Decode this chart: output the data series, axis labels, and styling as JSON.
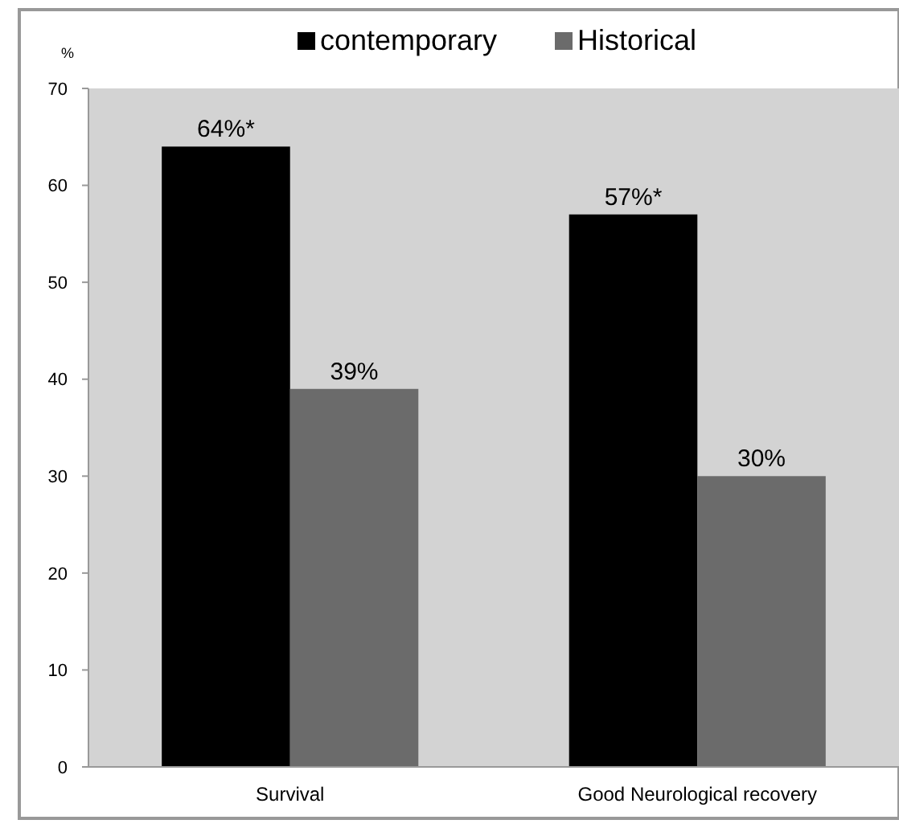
{
  "chart_data": {
    "type": "bar",
    "ylabel": "%",
    "categories": [
      "Survival",
      "Good Neurological recovery"
    ],
    "series": [
      {
        "name": "contemporary",
        "color": "#000000",
        "values": [
          64,
          57
        ],
        "value_labels": [
          "64%*",
          "57%*"
        ]
      },
      {
        "name": "Historical",
        "color": "#6b6b6b",
        "values": [
          39,
          30
        ],
        "value_labels": [
          "39%",
          "30%"
        ]
      }
    ],
    "ylim": [
      0,
      70
    ],
    "yticks": [
      0,
      10,
      20,
      30,
      40,
      50,
      60,
      70
    ],
    "grid": false,
    "legend": "top"
  }
}
